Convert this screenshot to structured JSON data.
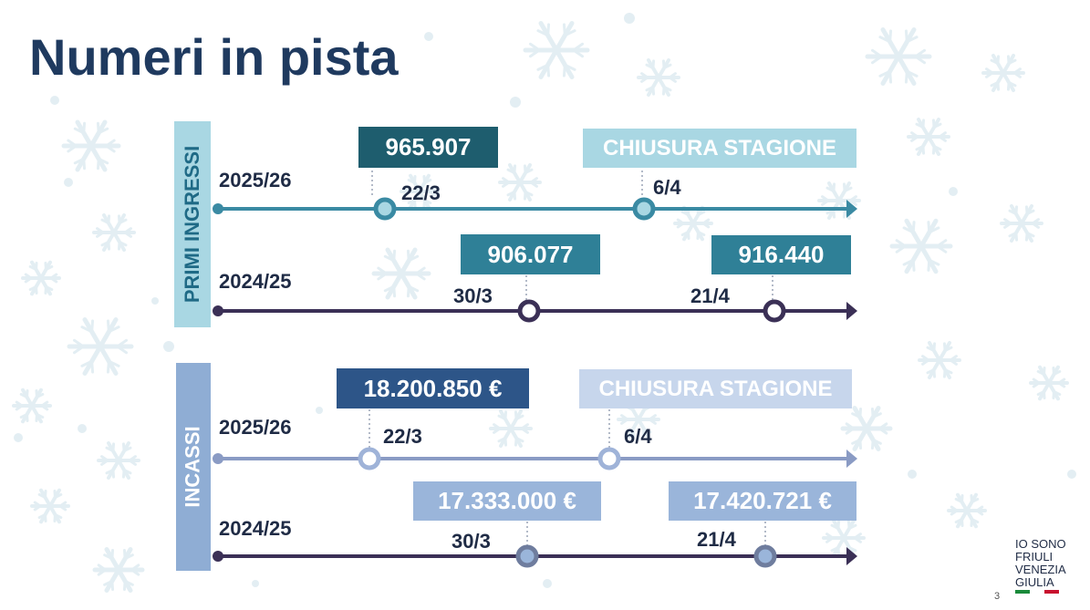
{
  "slide": {
    "title": "Numeri in pista",
    "page_number": "3"
  },
  "sections": [
    {
      "label": "PRIMI INGRESSI",
      "label_color": "#a9d7e3",
      "label_text_color": "#1f6a86",
      "rows": [
        {
          "season": "2025/26",
          "line_color": "#3a8aa3",
          "markers": [
            {
              "date": "22/3",
              "box": "965.907",
              "box_color": "#1e5d6e",
              "node": "filled-ring",
              "node_color": "#3a8aa3",
              "node_inner": "#a9d7e3"
            },
            {
              "date": "6/4",
              "box": "CHIUSURA STAGIONE",
              "box_color": "#a9d7e3",
              "node": "filled-ring",
              "node_color": "#3a8aa3",
              "node_inner": "#a9d7e3"
            }
          ]
        },
        {
          "season": "2024/25",
          "line_color": "#3b3056",
          "markers": [
            {
              "date": "30/3",
              "box": "906.077",
              "box_color": "#2f8097",
              "node": "ring",
              "node_color": "#3b3056",
              "node_inner": "#ffffff"
            },
            {
              "date": "21/4",
              "box": "916.440",
              "box_color": "#2f8097",
              "node": "ring",
              "node_color": "#3b3056",
              "node_inner": "#ffffff"
            }
          ]
        }
      ]
    },
    {
      "label": "INCASSI",
      "label_color": "#8fadd4",
      "label_text_color": "#ffffff",
      "rows": [
        {
          "season": "2025/26",
          "line_color": "#8a9bc4",
          "markers": [
            {
              "date": "22/3",
              "box": "18.200.850 €",
              "box_color": "#2d5588",
              "node": "ring",
              "node_color": "#9fb3d8",
              "node_inner": "#ffffff"
            },
            {
              "date": "6/4",
              "box": "CHIUSURA STAGIONE",
              "box_color": "#c7d6ec",
              "node": "ring",
              "node_color": "#9fb3d8",
              "node_inner": "#ffffff"
            }
          ]
        },
        {
          "season": "2024/25",
          "line_color": "#3b3056",
          "markers": [
            {
              "date": "30/3",
              "box": "17.333.000 €",
              "box_color": "#9ab5da",
              "node": "filled-ring",
              "node_color": "#6f7d9e",
              "node_inner": "#9ab5da"
            },
            {
              "date": "21/4",
              "box": "17.420.721 €",
              "box_color": "#9ab5da",
              "node": "filled-ring",
              "node_color": "#6f7d9e",
              "node_inner": "#9ab5da"
            }
          ]
        }
      ]
    }
  ],
  "logo": {
    "lines": [
      "IO SONO",
      "FRIULI",
      "VENEZIA",
      "GIULIA"
    ],
    "flag_colors": [
      "#1a8a3a",
      "#ffffff",
      "#c8102e"
    ]
  },
  "decoration": {
    "snowflake_color": "#e3eef3"
  }
}
